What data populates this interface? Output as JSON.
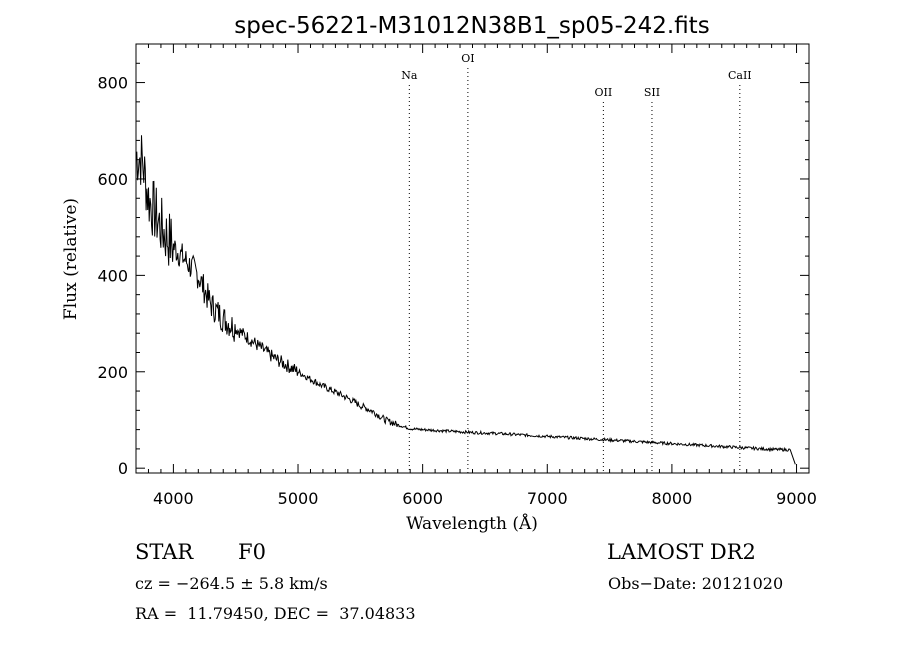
{
  "chart_data": {
    "type": "line",
    "title": "spec-56221-M31012N38B1_sp05-242.fits",
    "xlabel": "Wavelength (Å)",
    "ylabel": "Flux (relative)",
    "xlim": [
      3700,
      9100
    ],
    "ylim": [
      -10,
      880
    ],
    "xticks": [
      "4000",
      "5000",
      "6000",
      "7000",
      "8000",
      "9000"
    ],
    "yticks": [
      "0",
      "200",
      "400",
      "600",
      "800"
    ],
    "grid": false,
    "series": [
      {
        "x": [
          3700,
          3750,
          3800,
          3850,
          3900,
          3950,
          4000,
          4100,
          4200,
          4300,
          4400,
          4500,
          4600,
          4700,
          4800,
          4900,
          5000,
          5100,
          5200,
          5300,
          5400,
          5500,
          5600,
          5700,
          5800,
          5900,
          6000,
          6200,
          6400,
          6600,
          6800,
          7000,
          7200,
          7400,
          7600,
          7800,
          8000,
          8200,
          8400,
          8600,
          8800,
          8950
        ],
        "values": [
          650,
          640,
          560,
          530,
          500,
          480,
          460,
          430,
          400,
          340,
          310,
          290,
          270,
          250,
          230,
          215,
          200,
          185,
          170,
          158,
          145,
          130,
          118,
          100,
          90,
          82,
          80,
          77,
          74,
          72,
          69,
          66,
          63,
          60,
          57,
          54,
          51,
          48,
          45,
          42,
          39,
          38
        ]
      }
    ],
    "lines": [
      {
        "label": "Na",
        "x": 5893
      },
      {
        "label": "OI",
        "x": 6363
      },
      {
        "label": "OII",
        "x": 7450
      },
      {
        "label": "SII",
        "x": 7840
      },
      {
        "label": "CaII",
        "x": 8545
      }
    ]
  },
  "info": {
    "object_class": "STAR",
    "subclass": "F0",
    "survey": "LAMOST DR2",
    "cz": "cz = −264.5 ± 5.8 km/s",
    "obs_date": "Obs−Date: 20121020",
    "coords": "RA =  11.79450, DEC =  37.04833"
  }
}
